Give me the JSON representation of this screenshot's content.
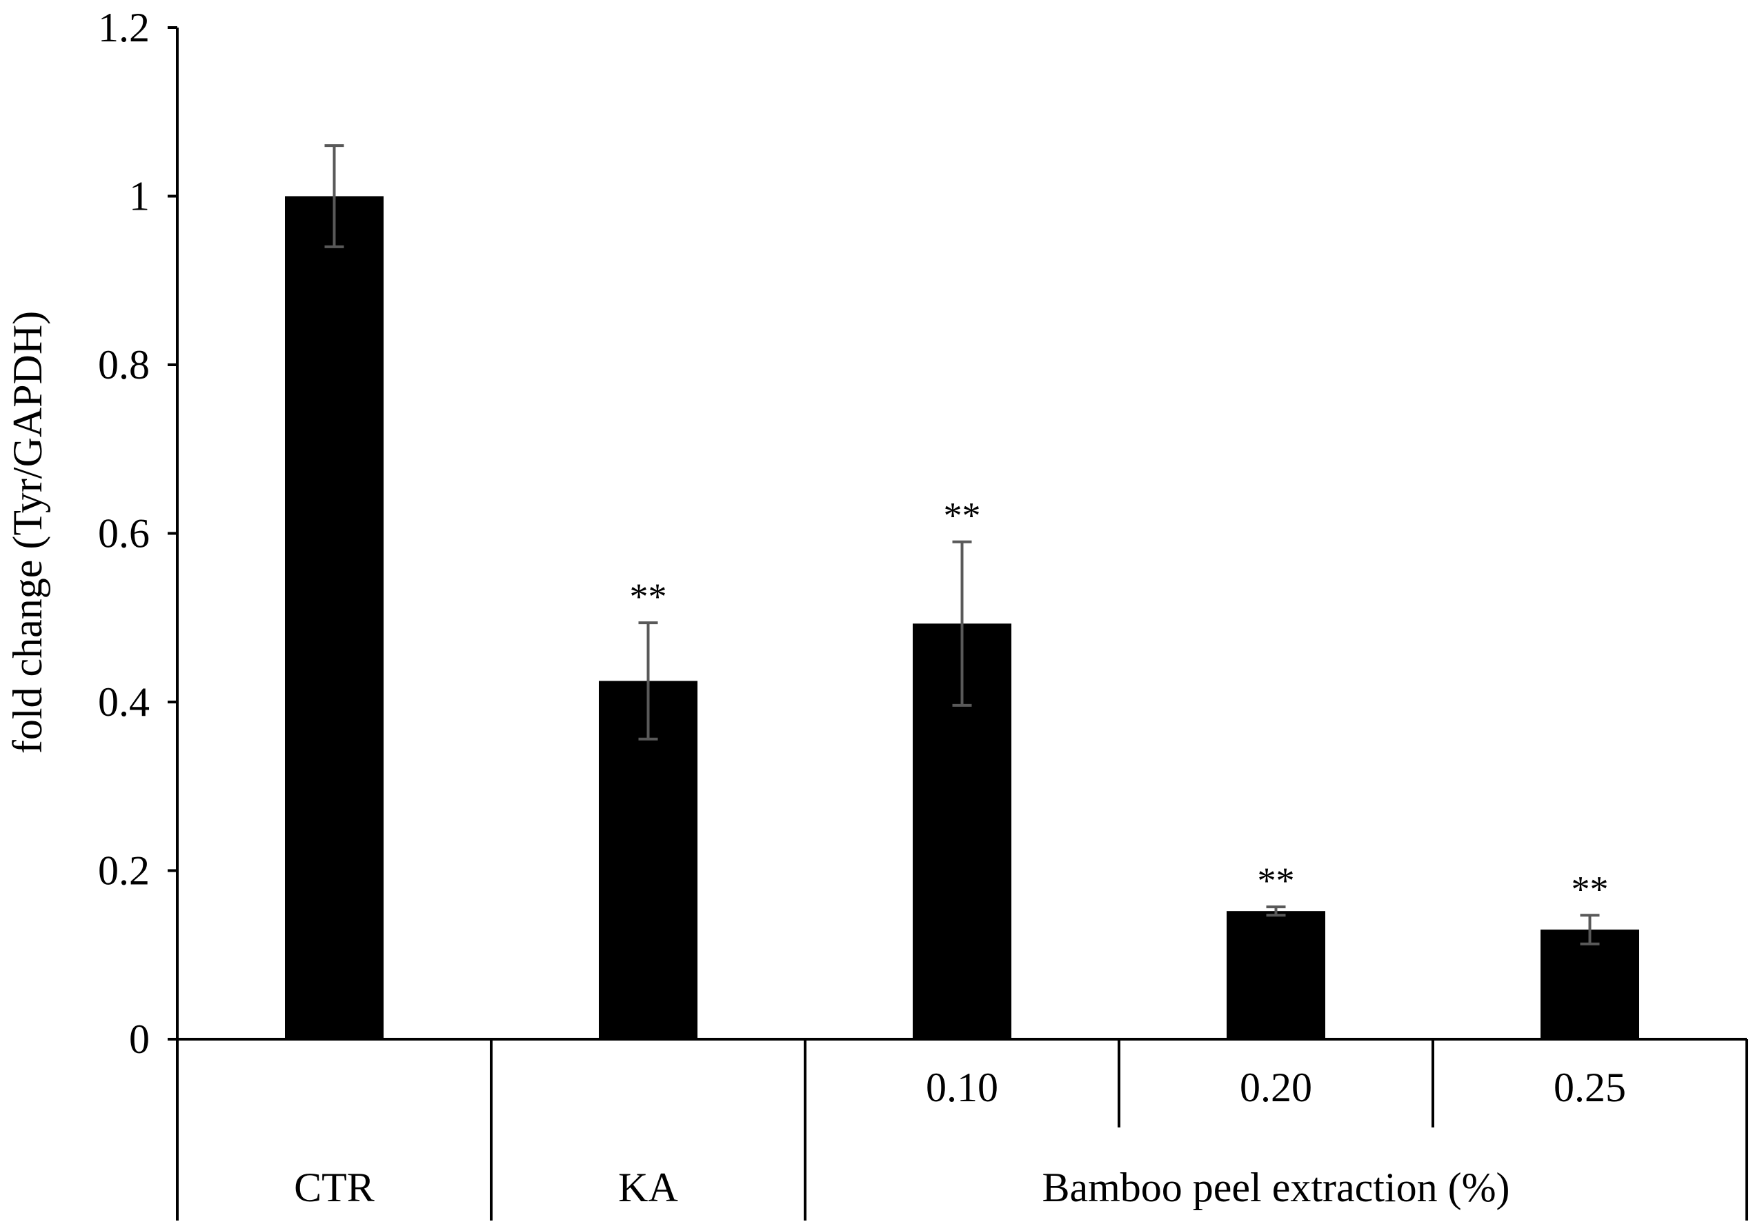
{
  "chart_data": {
    "type": "bar",
    "title": "",
    "ylabel": "fold change (Tyr/GAPDH)",
    "xlabel": "",
    "ylim": [
      0,
      1.2
    ],
    "yticks": [
      0,
      0.2,
      0.4,
      0.6,
      0.8,
      1,
      1.2
    ],
    "ytick_labels": [
      "0",
      "0.2",
      "0.4",
      "0.6",
      "0.8",
      "1",
      "1.2"
    ],
    "categories": [
      "CTR",
      "KA",
      "0.10",
      "0.20",
      "0.25"
    ],
    "values": [
      1.0,
      0.425,
      0.493,
      0.152,
      0.13
    ],
    "errors": [
      0.06,
      0.069,
      0.097,
      0.005,
      0.017
    ],
    "significance": [
      "",
      "**",
      "**",
      "**",
      "**"
    ],
    "group_labels": [
      {
        "label": "CTR",
        "span": [
          0,
          0
        ]
      },
      {
        "label": "KA",
        "span": [
          1,
          1
        ]
      },
      {
        "label": "Bamboo peel extraction (%)",
        "span": [
          2,
          4
        ]
      }
    ],
    "bar_color": "#000000",
    "error_color": "#595959",
    "axis_color": "#000000",
    "grid": false,
    "legend": "none"
  }
}
